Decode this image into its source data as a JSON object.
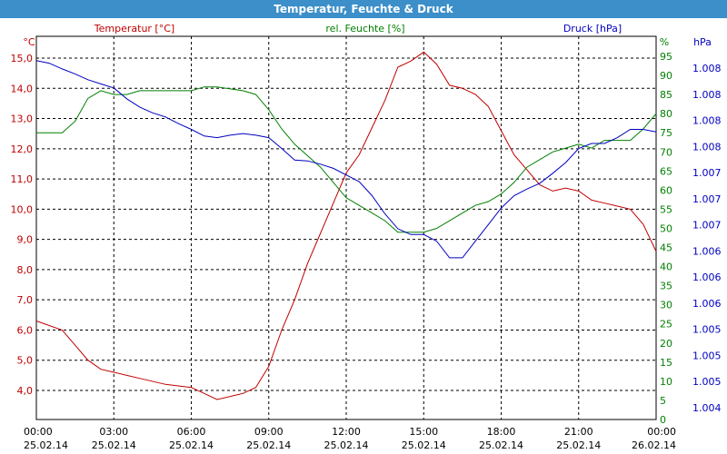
{
  "window": {
    "title": "Temperatur, Feuchte & Druck"
  },
  "chart_data": {
    "type": "line",
    "axes": {
      "temperature": {
        "title": "Temperatur [°C]",
        "unit": "°C",
        "color": "#c00000",
        "ticks": [
          "4,0",
          "5,0",
          "6,0",
          "7,0",
          "8,0",
          "9,0",
          "10,0",
          "11,0",
          "12,0",
          "13,0",
          "14,0",
          "15,0"
        ]
      },
      "humidity": {
        "title": "rel. Feuchte [%]",
        "unit": "%",
        "color": "#008000",
        "ticks": [
          "0",
          "5",
          "10",
          "15",
          "20",
          "25",
          "30",
          "35",
          "40",
          "45",
          "50",
          "55",
          "60",
          "65",
          "70",
          "75",
          "80",
          "85",
          "90",
          "95"
        ]
      },
      "pressure": {
        "title": "Druck [hPa]",
        "unit": "hPa",
        "color": "#0000c0",
        "ticks": [
          "1.004",
          "1.005",
          "1.005",
          "1.005",
          "1.006",
          "1.006",
          "1.006",
          "1.007",
          "1.007",
          "1.007",
          "1.008",
          "1.008",
          "1.008",
          "1.008"
        ]
      }
    },
    "x_ticks": [
      {
        "time": "00:00",
        "date": "25.02.14"
      },
      {
        "time": "03:00",
        "date": "25.02.14"
      },
      {
        "time": "06:00",
        "date": "25.02.14"
      },
      {
        "time": "09:00",
        "date": "25.02.14"
      },
      {
        "time": "12:00",
        "date": "25.02.14"
      },
      {
        "time": "15:00",
        "date": "25.02.14"
      },
      {
        "time": "18:00",
        "date": "25.02.14"
      },
      {
        "time": "21:00",
        "date": "25.02.14"
      },
      {
        "time": "00:00",
        "date": "26.02.14"
      }
    ],
    "grid": true,
    "series": [
      {
        "name": "Temperatur [°C]",
        "axis": "temperature",
        "color": "#c00000",
        "x": [
          0,
          1,
          1.5,
          2,
          2.5,
          3,
          3.5,
          4,
          5,
          6,
          6.5,
          7,
          8,
          8.5,
          9,
          9.5,
          10,
          10.5,
          11,
          11.5,
          12,
          12.5,
          13,
          13.5,
          14,
          14.5,
          15,
          15.5,
          16,
          16.5,
          17,
          17.5,
          18,
          18.5,
          19,
          19.5,
          20,
          20.5,
          21,
          21.5,
          22,
          22.5,
          23,
          23.5,
          24
        ],
        "values": [
          6.3,
          6.0,
          5.5,
          5.0,
          4.7,
          4.6,
          4.5,
          4.4,
          4.2,
          4.1,
          3.9,
          3.7,
          3.9,
          4.1,
          4.8,
          6.0,
          7.0,
          8.2,
          9.2,
          10.2,
          11.2,
          11.8,
          12.7,
          13.6,
          14.7,
          14.9,
          15.2,
          14.8,
          14.1,
          14.0,
          13.8,
          13.4,
          12.6,
          11.8,
          11.3,
          10.8,
          10.6,
          10.7,
          10.6,
          10.3,
          10.2,
          10.1,
          10.0,
          9.5,
          8.6
        ]
      },
      {
        "name": "rel. Feuchte [%]",
        "axis": "humidity",
        "color": "#008000",
        "x": [
          0,
          1,
          1.5,
          2,
          2.5,
          3,
          3.5,
          4,
          5,
          6,
          6.5,
          7,
          8,
          8.5,
          9,
          9.5,
          10,
          10.5,
          11,
          11.5,
          12,
          12.5,
          13,
          13.5,
          14,
          14.5,
          15,
          15.5,
          16,
          16.5,
          17,
          17.5,
          18,
          18.5,
          19,
          19.5,
          20,
          20.5,
          21,
          21.5,
          22,
          22.5,
          23,
          23.5,
          24
        ],
        "values": [
          75,
          75,
          78,
          84,
          86,
          85,
          85,
          86,
          86,
          86,
          87,
          87,
          86,
          85,
          81,
          76,
          72,
          69,
          66,
          62,
          58,
          56,
          54,
          52,
          49,
          49,
          49,
          50,
          52,
          54,
          56,
          57,
          59,
          62,
          66,
          68,
          70,
          71,
          72,
          71,
          73,
          73,
          73,
          76,
          80
        ]
      },
      {
        "name": "Druck [hPa]",
        "axis": "pressure",
        "color": "#0000c0",
        "x": [
          0,
          0.5,
          1,
          1.5,
          2,
          2.5,
          3,
          3.5,
          4,
          4.5,
          5,
          5.5,
          6,
          6.5,
          7,
          7.5,
          8,
          8.5,
          9,
          9.5,
          10,
          10.5,
          11,
          11.5,
          12,
          12.5,
          13,
          13.5,
          14,
          14.5,
          15,
          15.5,
          16,
          16.5,
          17,
          17.5,
          18,
          18.5,
          19,
          19.5,
          20,
          20.5,
          21,
          21.5,
          22,
          22.5,
          23,
          23.5,
          24
        ],
        "values": [
          1.00818,
          1.00815,
          1.00808,
          1.00802,
          1.00795,
          1.0079,
          1.00785,
          1.00772,
          1.00762,
          1.00755,
          1.0075,
          1.00742,
          1.00735,
          1.00727,
          1.00725,
          1.00728,
          1.0073,
          1.00728,
          1.00725,
          1.00712,
          1.00698,
          1.00697,
          1.00693,
          1.00688,
          1.0068,
          1.00672,
          1.00655,
          1.00633,
          1.00615,
          1.00608,
          1.00608,
          1.006,
          1.0058,
          1.0058,
          1.006,
          1.0062,
          1.0064,
          1.00655,
          1.00663,
          1.0067,
          1.00682,
          1.00695,
          1.00712,
          1.00718,
          1.00718,
          1.00725,
          1.00735,
          1.00735,
          1.00732
        ]
      }
    ]
  }
}
